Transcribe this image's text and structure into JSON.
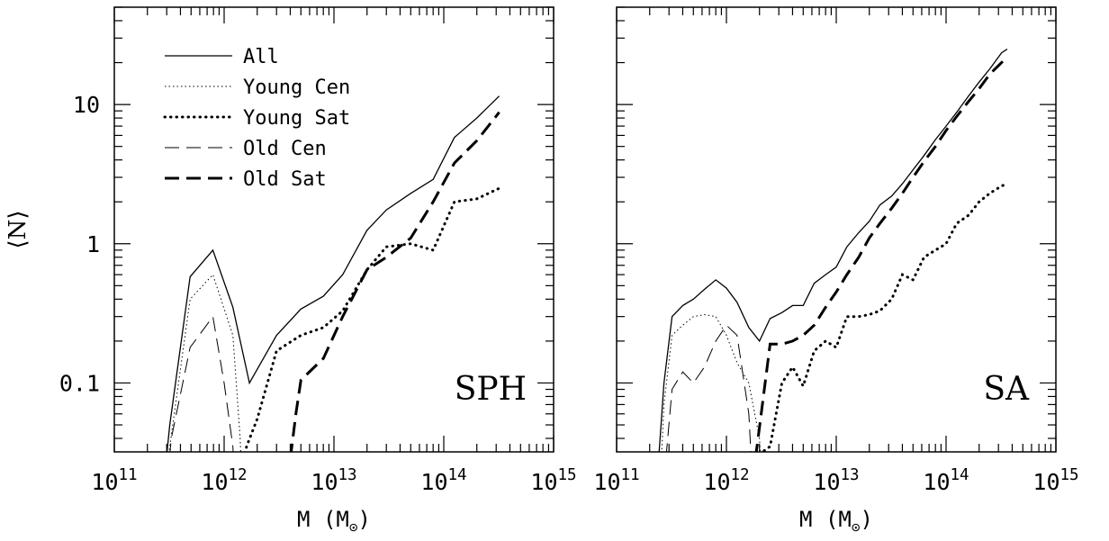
{
  "chart_data": [
    {
      "type": "line",
      "panel_label": "SPH",
      "xlabel": "M (M⊙)",
      "ylabel": "⟨N⟩",
      "x_scale": "log",
      "y_scale": "log",
      "xlim": [
        100000000000.0,
        1000000000000000.0
      ],
      "ylim": [
        0.032,
        50
      ],
      "x_tick_labels": [
        "10^11",
        "10^12",
        "10^13",
        "10^14",
        "10^15"
      ],
      "y_tick_labels": [
        "0.1",
        "1",
        "10"
      ],
      "legend": {
        "position": "top-left",
        "entries": [
          "All",
          "Young Cen",
          "Young Sat",
          "Old Cen",
          "Old Sat"
        ]
      },
      "series": [
        {
          "name": "All",
          "style": "solid",
          "points": [
            [
              260000000000.0,
              0.01
            ],
            [
              320000000000.0,
              0.05
            ],
            [
              490000000000.0,
              0.58
            ],
            [
              790000000000.0,
              0.9
            ],
            [
              1200000000000.0,
              0.35
            ],
            [
              1700000000000.0,
              0.1
            ],
            [
              3000000000000.0,
              0.22
            ],
            [
              5000000000000.0,
              0.34
            ],
            [
              8000000000000.0,
              0.42
            ],
            [
              12000000000000.0,
              0.6
            ],
            [
              20000000000000.0,
              1.25
            ],
            [
              30000000000000.0,
              1.75
            ],
            [
              50000000000000.0,
              2.3
            ],
            [
              80000000000000.0,
              2.9
            ],
            [
              125000000000000.0,
              5.8
            ],
            [
              200000000000000.0,
              8
            ],
            [
              320000000000000.0,
              11.5
            ]
          ]
        },
        {
          "name": "Young Cen",
          "style": "dotted-thin",
          "points": [
            [
              260000000000.0,
              0.01
            ],
            [
              320000000000.0,
              0.035
            ],
            [
              490000000000.0,
              0.4
            ],
            [
              790000000000.0,
              0.6
            ],
            [
              1200000000000.0,
              0.22
            ],
            [
              1400000000000.0,
              0.04
            ],
            [
              1500000000000.0,
              0.01
            ]
          ]
        },
        {
          "name": "Young Sat",
          "style": "dotted-thick",
          "points": [
            [
              1200000000000.0,
              0.01
            ],
            [
              1600000000000.0,
              0.035
            ],
            [
              2000000000000.0,
              0.055
            ],
            [
              3000000000000.0,
              0.17
            ],
            [
              5000000000000.0,
              0.22
            ],
            [
              8000000000000.0,
              0.25
            ],
            [
              12000000000000.0,
              0.33
            ],
            [
              20000000000000.0,
              0.65
            ],
            [
              30000000000000.0,
              0.95
            ],
            [
              50000000000000.0,
              1
            ],
            [
              80000000000000.0,
              0.9
            ],
            [
              125000000000000.0,
              2
            ],
            [
              200000000000000.0,
              2.1
            ],
            [
              320000000000000.0,
              2.5
            ]
          ]
        },
        {
          "name": "Old Cen",
          "style": "dashed-thin",
          "points": [
            [
              280000000000.0,
              0.01
            ],
            [
              330000000000.0,
              0.04
            ],
            [
              490000000000.0,
              0.18
            ],
            [
              790000000000.0,
              0.3
            ],
            [
              1000000000000.0,
              0.1
            ],
            [
              1200000000000.0,
              0.035
            ],
            [
              1300000000000.0,
              0.01
            ]
          ]
        },
        {
          "name": "Old Sat",
          "style": "dashed-thick",
          "points": [
            [
              3400000000000.0,
              0.01
            ],
            [
              4500000000000.0,
              0.06
            ],
            [
              5000000000000.0,
              0.105
            ],
            [
              8000000000000.0,
              0.15
            ],
            [
              12000000000000.0,
              0.3
            ],
            [
              20000000000000.0,
              0.65
            ],
            [
              30000000000000.0,
              0.8
            ],
            [
              50000000000000.0,
              1.1
            ],
            [
              80000000000000.0,
              2
            ],
            [
              125000000000000.0,
              3.8
            ],
            [
              200000000000000.0,
              5.5
            ],
            [
              320000000000000.0,
              8.8
            ]
          ]
        }
      ]
    },
    {
      "type": "line",
      "panel_label": "SA",
      "xlabel": "M (M⊙)",
      "x_scale": "log",
      "y_scale": "log",
      "xlim": [
        100000000000.0,
        1000000000000000.0
      ],
      "ylim": [
        0.032,
        50
      ],
      "x_tick_labels": [
        "10^11",
        "10^12",
        "10^13",
        "10^14",
        "10^15"
      ],
      "series": [
        {
          "name": "All",
          "style": "solid",
          "points": [
            [
              220000000000.0,
              0.01
            ],
            [
              270000000000.0,
              0.1
            ],
            [
              320000000000.0,
              0.3
            ],
            [
              400000000000.0,
              0.36
            ],
            [
              500000000000.0,
              0.4
            ],
            [
              630000000000.0,
              0.47
            ],
            [
              800000000000.0,
              0.55
            ],
            [
              1000000000000.0,
              0.48
            ],
            [
              1250000000000.0,
              0.38
            ],
            [
              1600000000000.0,
              0.25
            ],
            [
              2000000000000.0,
              0.2
            ],
            [
              2500000000000.0,
              0.29
            ],
            [
              3200000000000.0,
              0.32
            ],
            [
              4000000000000.0,
              0.36
            ],
            [
              5000000000000.0,
              0.36
            ],
            [
              6300000000000.0,
              0.52
            ],
            [
              8000000000000.0,
              0.6
            ],
            [
              10000000000000.0,
              0.68
            ],
            [
              12500000000000.0,
              0.95
            ],
            [
              16000000000000.0,
              1.2
            ],
            [
              20000000000000.0,
              1.45
            ],
            [
              25000000000000.0,
              1.9
            ],
            [
              32000000000000.0,
              2.2
            ],
            [
              40000000000000.0,
              2.7
            ],
            [
              50000000000000.0,
              3.4
            ],
            [
              63000000000000.0,
              4.3
            ],
            [
              80000000000000.0,
              5.6
            ],
            [
              100000000000000.0,
              7
            ],
            [
              125000000000000.0,
              8.8
            ],
            [
              160000000000000.0,
              11.5
            ],
            [
              200000000000000.0,
              14.5
            ],
            [
              250000000000000.0,
              18
            ],
            [
              320000000000000.0,
              23.5
            ],
            [
              360000000000000.0,
              25
            ]
          ]
        },
        {
          "name": "Young Cen",
          "style": "dotted-thin",
          "points": [
            [
              240000000000.0,
              0.01
            ],
            [
              270000000000.0,
              0.07
            ],
            [
              320000000000.0,
              0.22
            ],
            [
              400000000000.0,
              0.26
            ],
            [
              500000000000.0,
              0.3
            ],
            [
              630000000000.0,
              0.31
            ],
            [
              800000000000.0,
              0.3
            ],
            [
              1000000000000.0,
              0.22
            ],
            [
              1250000000000.0,
              0.14
            ],
            [
              1600000000000.0,
              0.1
            ],
            [
              2000000000000.0,
              0.04
            ],
            [
              2200000000000.0,
              0.01
            ]
          ]
        },
        {
          "name": "Young Sat",
          "style": "dotted-thick",
          "points": [
            [
              1500000000000.0,
              0.01
            ],
            [
              1900000000000.0,
              0.03
            ],
            [
              2500000000000.0,
              0.035
            ],
            [
              3200000000000.0,
              0.1
            ],
            [
              4000000000000.0,
              0.13
            ],
            [
              5000000000000.0,
              0.095
            ],
            [
              6300000000000.0,
              0.17
            ],
            [
              8000000000000.0,
              0.2
            ],
            [
              10000000000000.0,
              0.18
            ],
            [
              12500000000000.0,
              0.3
            ],
            [
              16000000000000.0,
              0.3
            ],
            [
              20000000000000.0,
              0.31
            ],
            [
              25000000000000.0,
              0.33
            ],
            [
              32000000000000.0,
              0.4
            ],
            [
              40000000000000.0,
              0.6
            ],
            [
              50000000000000.0,
              0.55
            ],
            [
              63000000000000.0,
              0.8
            ],
            [
              80000000000000.0,
              0.9
            ],
            [
              100000000000000.0,
              1
            ],
            [
              125000000000000.0,
              1.4
            ],
            [
              160000000000000.0,
              1.6
            ],
            [
              200000000000000.0,
              2
            ],
            [
              250000000000000.0,
              2.3
            ],
            [
              320000000000000.0,
              2.6
            ],
            [
              360000000000000.0,
              2.7
            ]
          ]
        },
        {
          "name": "Old Cen",
          "style": "dashed-thin",
          "points": [
            [
              250000000000.0,
              0.01
            ],
            [
              320000000000.0,
              0.09
            ],
            [
              400000000000.0,
              0.12
            ],
            [
              500000000000.0,
              0.1
            ],
            [
              630000000000.0,
              0.13
            ],
            [
              800000000000.0,
              0.2
            ],
            [
              1000000000000.0,
              0.26
            ],
            [
              1250000000000.0,
              0.22
            ],
            [
              1600000000000.0,
              0.06
            ],
            [
              1800000000000.0,
              0.01
            ]
          ]
        },
        {
          "name": "Old Sat",
          "style": "dashed-thick",
          "points": [
            [
              1500000000000.0,
              0.01
            ],
            [
              1900000000000.0,
              0.035
            ],
            [
              2500000000000.0,
              0.19
            ],
            [
              3200000000000.0,
              0.19
            ],
            [
              4000000000000.0,
              0.2
            ],
            [
              5000000000000.0,
              0.22
            ],
            [
              6300000000000.0,
              0.26
            ],
            [
              8000000000000.0,
              0.35
            ],
            [
              10000000000000.0,
              0.45
            ],
            [
              12500000000000.0,
              0.6
            ],
            [
              16000000000000.0,
              0.8
            ],
            [
              20000000000000.0,
              1.1
            ],
            [
              25000000000000.0,
              1.4
            ],
            [
              32000000000000.0,
              1.8
            ],
            [
              40000000000000.0,
              2.3
            ],
            [
              50000000000000.0,
              3
            ],
            [
              63000000000000.0,
              3.9
            ],
            [
              80000000000000.0,
              5
            ],
            [
              100000000000000.0,
              6.5
            ],
            [
              125000000000000.0,
              8.2
            ],
            [
              160000000000000.0,
              10.5
            ],
            [
              200000000000000.0,
              13
            ],
            [
              250000000000000.0,
              16.5
            ],
            [
              320000000000000.0,
              20
            ],
            [
              360000000000000.0,
              22
            ]
          ]
        }
      ]
    }
  ]
}
